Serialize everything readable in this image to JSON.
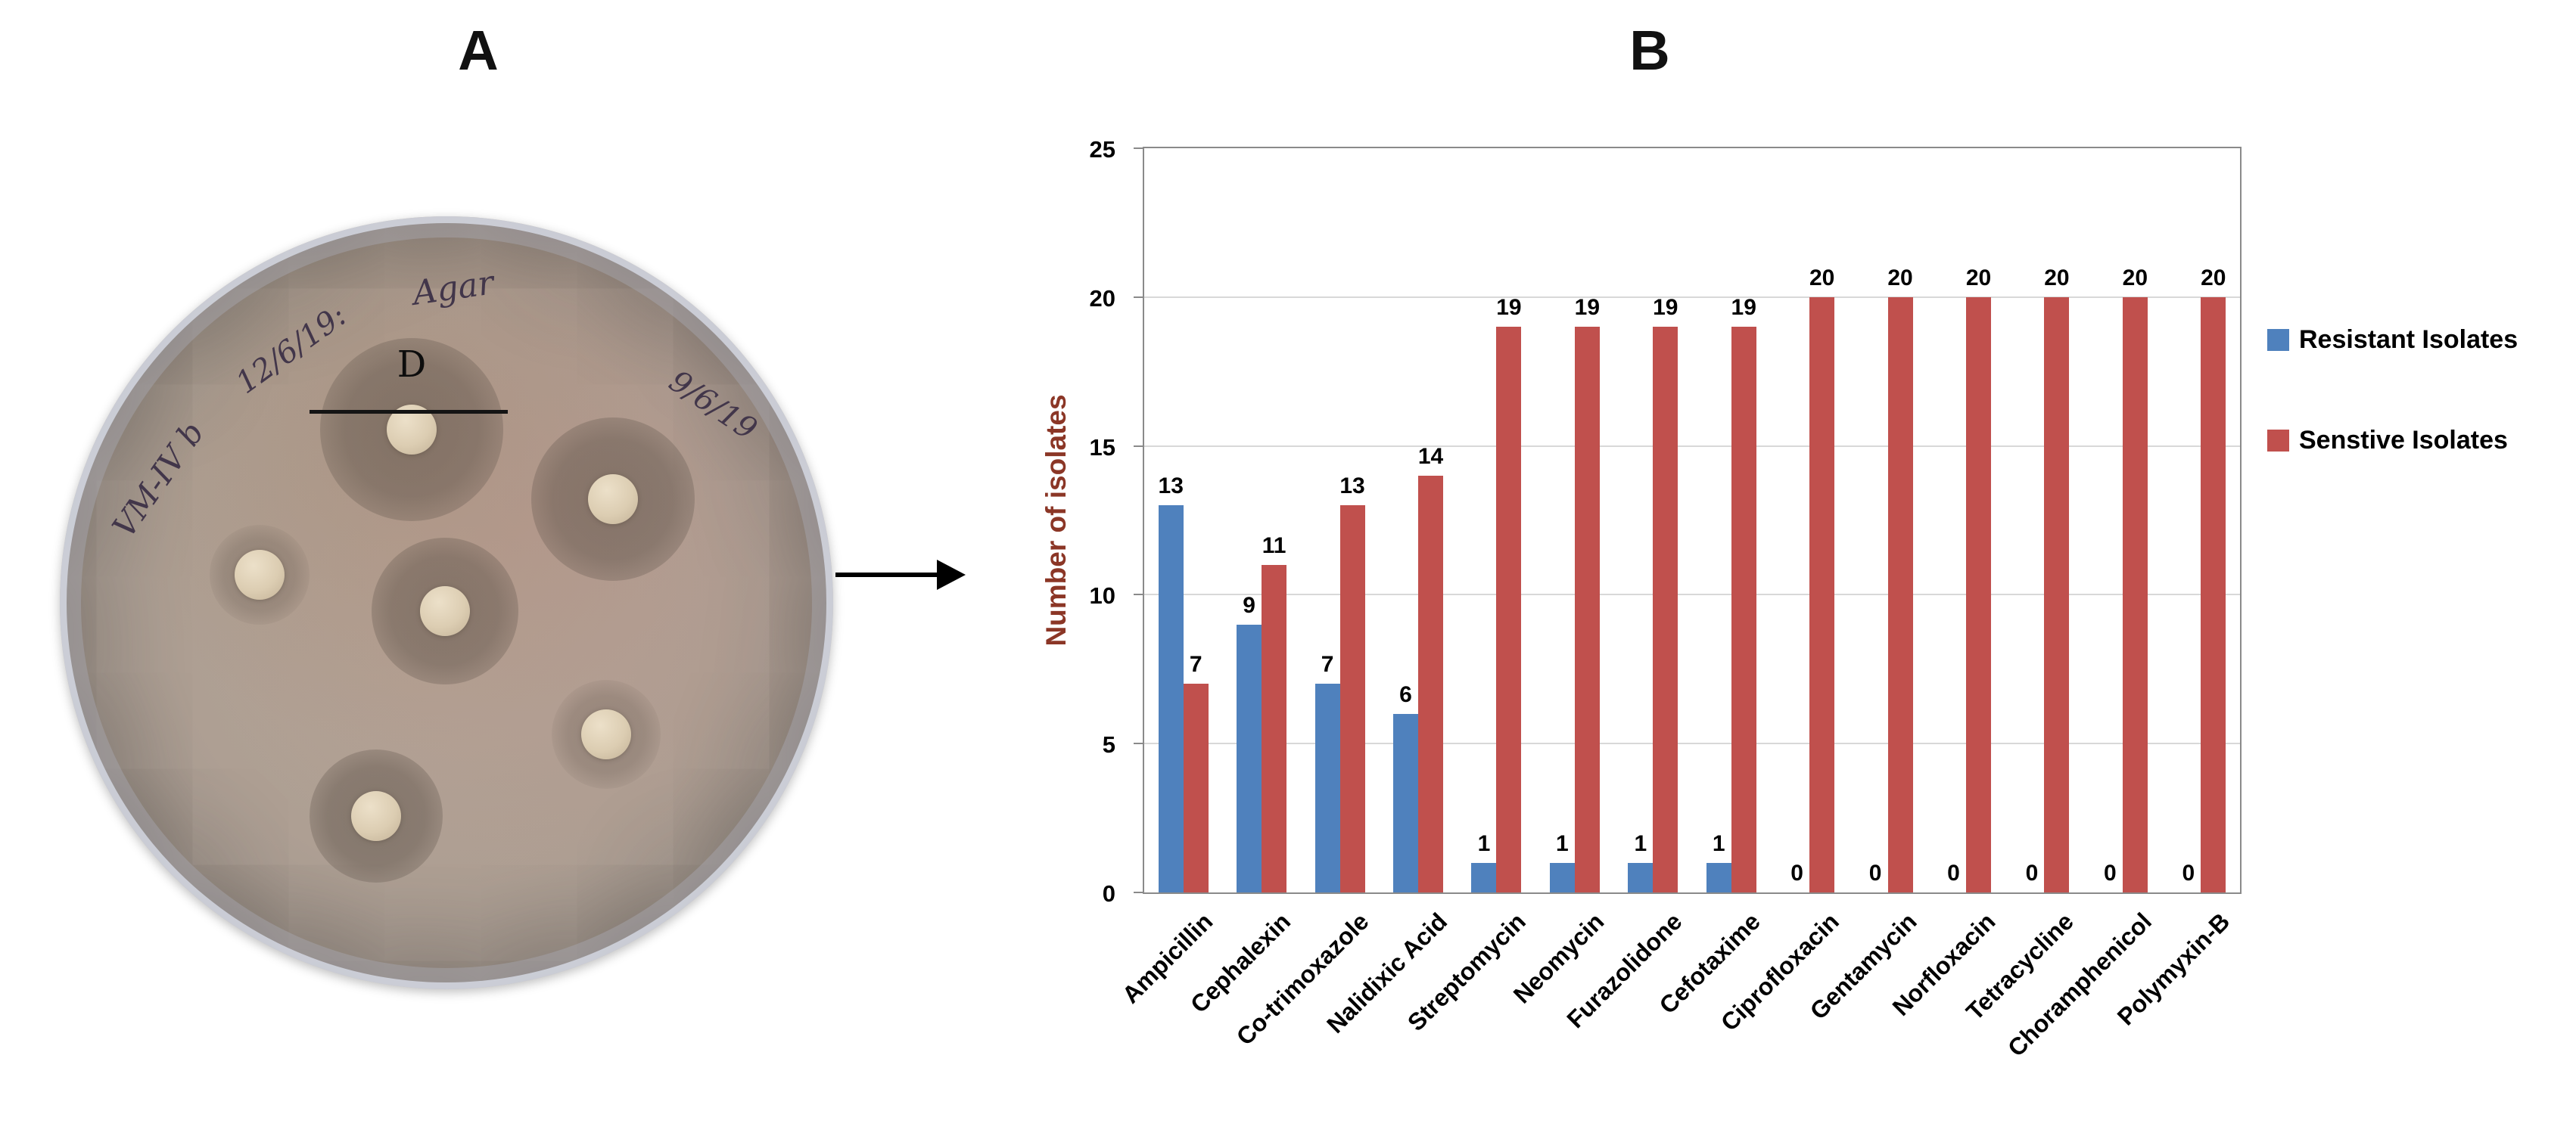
{
  "figure": {
    "panel_a_label": "A",
    "panel_b_label": "B"
  },
  "petri_dish": {
    "handwriting": {
      "left": "VM-IV b",
      "date_left": "12/6/19:",
      "top": "Agar",
      "date_right": "9/6/19"
    },
    "zone_label": "D"
  },
  "chart_data": {
    "type": "bar",
    "title": "",
    "ylabel": "Number of isolates",
    "ylabel_color": "#8b3626",
    "xlabel": "",
    "ylim": [
      0,
      25
    ],
    "yticks": [
      0,
      5,
      10,
      15,
      20,
      25
    ],
    "grid": true,
    "legend_position": "right",
    "categories": [
      "Ampicillin",
      "Cephalexin",
      "Co-trimoxazole",
      "Nalidixic Acid",
      "Streptomycin",
      "Neomycin",
      "Furazolidone",
      "Cefotaxime",
      "Ciprofloxacin",
      "Gentamycin",
      "Norfloxacin",
      "Tetracycline",
      "Choramphenicol",
      "Polymyxin-B"
    ],
    "series": [
      {
        "name": "Resistant Isolates",
        "color": "#4F81BD",
        "values": [
          13,
          9,
          7,
          6,
          1,
          1,
          1,
          1,
          0,
          0,
          0,
          0,
          0,
          0
        ]
      },
      {
        "name": "Senstive Isolates",
        "color": "#C0504D",
        "values": [
          7,
          11,
          13,
          14,
          19,
          19,
          19,
          19,
          20,
          20,
          20,
          20,
          20,
          20
        ]
      }
    ]
  }
}
